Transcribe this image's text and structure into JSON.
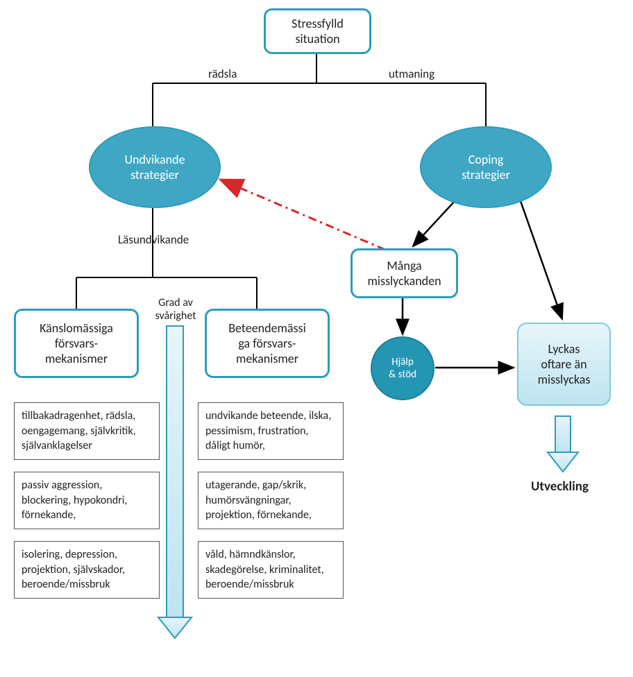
{
  "diagram": {
    "type": "flowchart",
    "colors": {
      "teal_border": "#2e9cba",
      "teal_fill": "#3fa7c4",
      "dark_teal": "#2496b4",
      "gradient_top": "#e8f5fa",
      "gradient_bottom": "#bde4f0",
      "text": "#222222",
      "white_text": "#ffffff",
      "black_line": "#000000",
      "red_line": "#d62828",
      "arrow_fill": "#bde4f0"
    },
    "nodes": {
      "root": {
        "text": "Stressfylld\nsituation"
      },
      "left_label": {
        "text": "rädsla"
      },
      "right_label": {
        "text": "utmaning"
      },
      "avoid": {
        "text": "Undvikande\nstrategier"
      },
      "coping": {
        "text": "Coping\nstrategier"
      },
      "lasundvikande": {
        "text": "Läsundvikande"
      },
      "grad": {
        "text": "Grad av\nsvårighet"
      },
      "emotional": {
        "text": "Känslomässiga\nförsvars-\nmekanismer"
      },
      "behavioral": {
        "text": "Beteendemässi\nga försvars-\nmekanismer"
      },
      "many_fail": {
        "text": "Många\nmisslyckanden"
      },
      "help": {
        "text": "Hjälp\n& stöd"
      },
      "succeed": {
        "text": "Lyckas\noftare än\nmisslyckas"
      },
      "utveckling": {
        "text": "Utveckling"
      }
    },
    "left_boxes": [
      "tillbakadragenhet, rädsla, oengagemang, självkritik, självanklagelser",
      "passiv aggression, blockering, hypokondri, förnekande,",
      "isolering, depression, projektion, självskador, beroende/missbruk"
    ],
    "right_boxes": [
      "undvikande beteende, ilska, pessimism, frustration, dåligt humör,",
      "utagerande, gap/skrik, humörsvängningar, projektion, förnekande,",
      "våld, hämndkänslor, skadegörelse, kriminalitet, beroende/missbruk"
    ]
  }
}
